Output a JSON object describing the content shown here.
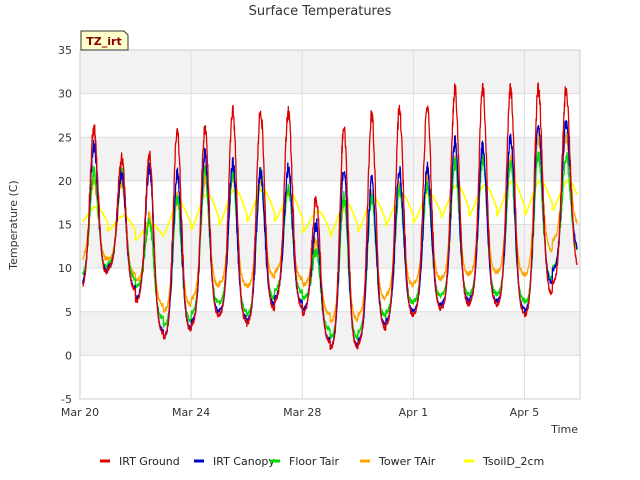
{
  "chart_data": {
    "type": "line",
    "title": "Surface Temperatures",
    "xlabel": "Time",
    "ylabel": "Temperature (C)",
    "ylim": [
      -5,
      35
    ],
    "yticks": [
      -5,
      0,
      5,
      10,
      15,
      20,
      25,
      30,
      35
    ],
    "xlim": [
      "Mar 20",
      "Apr 7"
    ],
    "xticks": [
      {
        "label": "Mar 20",
        "day": 0
      },
      {
        "label": "Mar 24",
        "day": 4
      },
      {
        "label": "Mar 28",
        "day": 8
      },
      {
        "label": "Apr 1",
        "day": 12
      },
      {
        "label": "Apr 5",
        "day": 16
      }
    ],
    "grid": true,
    "legend_position": "bottom",
    "site_label": "TZ_irt",
    "daily_peaks": {
      "days": [
        "Mar 20",
        "Mar 21",
        "Mar 22",
        "Mar 23",
        "Mar 24",
        "Mar 25",
        "Mar 26",
        "Mar 27",
        "Mar 28",
        "Mar 29",
        "Mar 30",
        "Mar 31",
        "Apr 1",
        "Apr 2",
        "Apr 3",
        "Apr 4",
        "Apr 5",
        "Apr 6"
      ]
    },
    "series": [
      {
        "name": "IRT Ground",
        "color": "#dd0000",
        "daily_max": [
          26,
          22.5,
          23,
          25.5,
          26,
          28,
          28,
          28,
          18,
          26,
          27.5,
          28,
          28.5,
          30.5,
          30.5,
          30.5,
          30.5,
          30.5
        ],
        "daily_min": [
          7.5,
          11,
          4,
          1,
          4.5,
          4.5,
          3,
          7.5,
          3.5,
          -0.5,
          2,
          4,
          5,
          5.5,
          6,
          5.5,
          4,
          10
        ]
      },
      {
        "name": "IRT Canopy",
        "color": "#0000cc",
        "daily_max": [
          24,
          21,
          21.5,
          21,
          23,
          22,
          21,
          21.5,
          15,
          21.5,
          20,
          21,
          21.5,
          24.5,
          24,
          25,
          26.5,
          26.5
        ],
        "daily_min": [
          8,
          11,
          4.5,
          1,
          5,
          5,
          3.5,
          8,
          4,
          -0.5,
          2.5,
          4.5,
          5.5,
          6,
          6.5,
          6,
          4.5,
          12
        ]
      },
      {
        "name": "Floor Tair",
        "color": "#00dd00",
        "daily_max": [
          21,
          21,
          15.5,
          18,
          21,
          21,
          21,
          19.5,
          12,
          18,
          18,
          19,
          19.5,
          22,
          22.5,
          22,
          23,
          23
        ],
        "daily_min": [
          9,
          11,
          6.5,
          2,
          6,
          6,
          4,
          9,
          5.5,
          0.5,
          3.5,
          5.5,
          6.5,
          7,
          7,
          7,
          5.5,
          12
        ]
      },
      {
        "name": "Tower TAir",
        "color": "#ffa500",
        "daily_max": [
          20,
          20,
          16,
          18,
          20,
          20.5,
          20,
          19,
          13,
          17.5,
          18.5,
          19.5,
          20.5,
          22.5,
          23,
          22.5,
          25,
          25
        ],
        "daily_min": [
          11,
          11,
          7.5,
          4,
          7.5,
          8.5,
          7.5,
          10.5,
          7,
          2.5,
          5.5,
          7.5,
          8.5,
          9,
          9.5,
          9.5,
          9,
          15
        ]
      },
      {
        "name": "TsoilD_2cm",
        "color": "#ffff00",
        "daily_max": [
          17,
          16,
          15,
          17.5,
          18.5,
          19,
          19,
          18.5,
          16.5,
          17.5,
          18,
          18.5,
          18.5,
          19.5,
          19.5,
          20,
          20,
          20
        ],
        "daily_min": [
          14.5,
          13.5,
          12.5,
          13,
          13.5,
          14,
          14.5,
          14.5,
          13,
          12.5,
          13.5,
          14,
          14.5,
          15,
          15,
          15,
          15,
          16
        ]
      }
    ]
  }
}
